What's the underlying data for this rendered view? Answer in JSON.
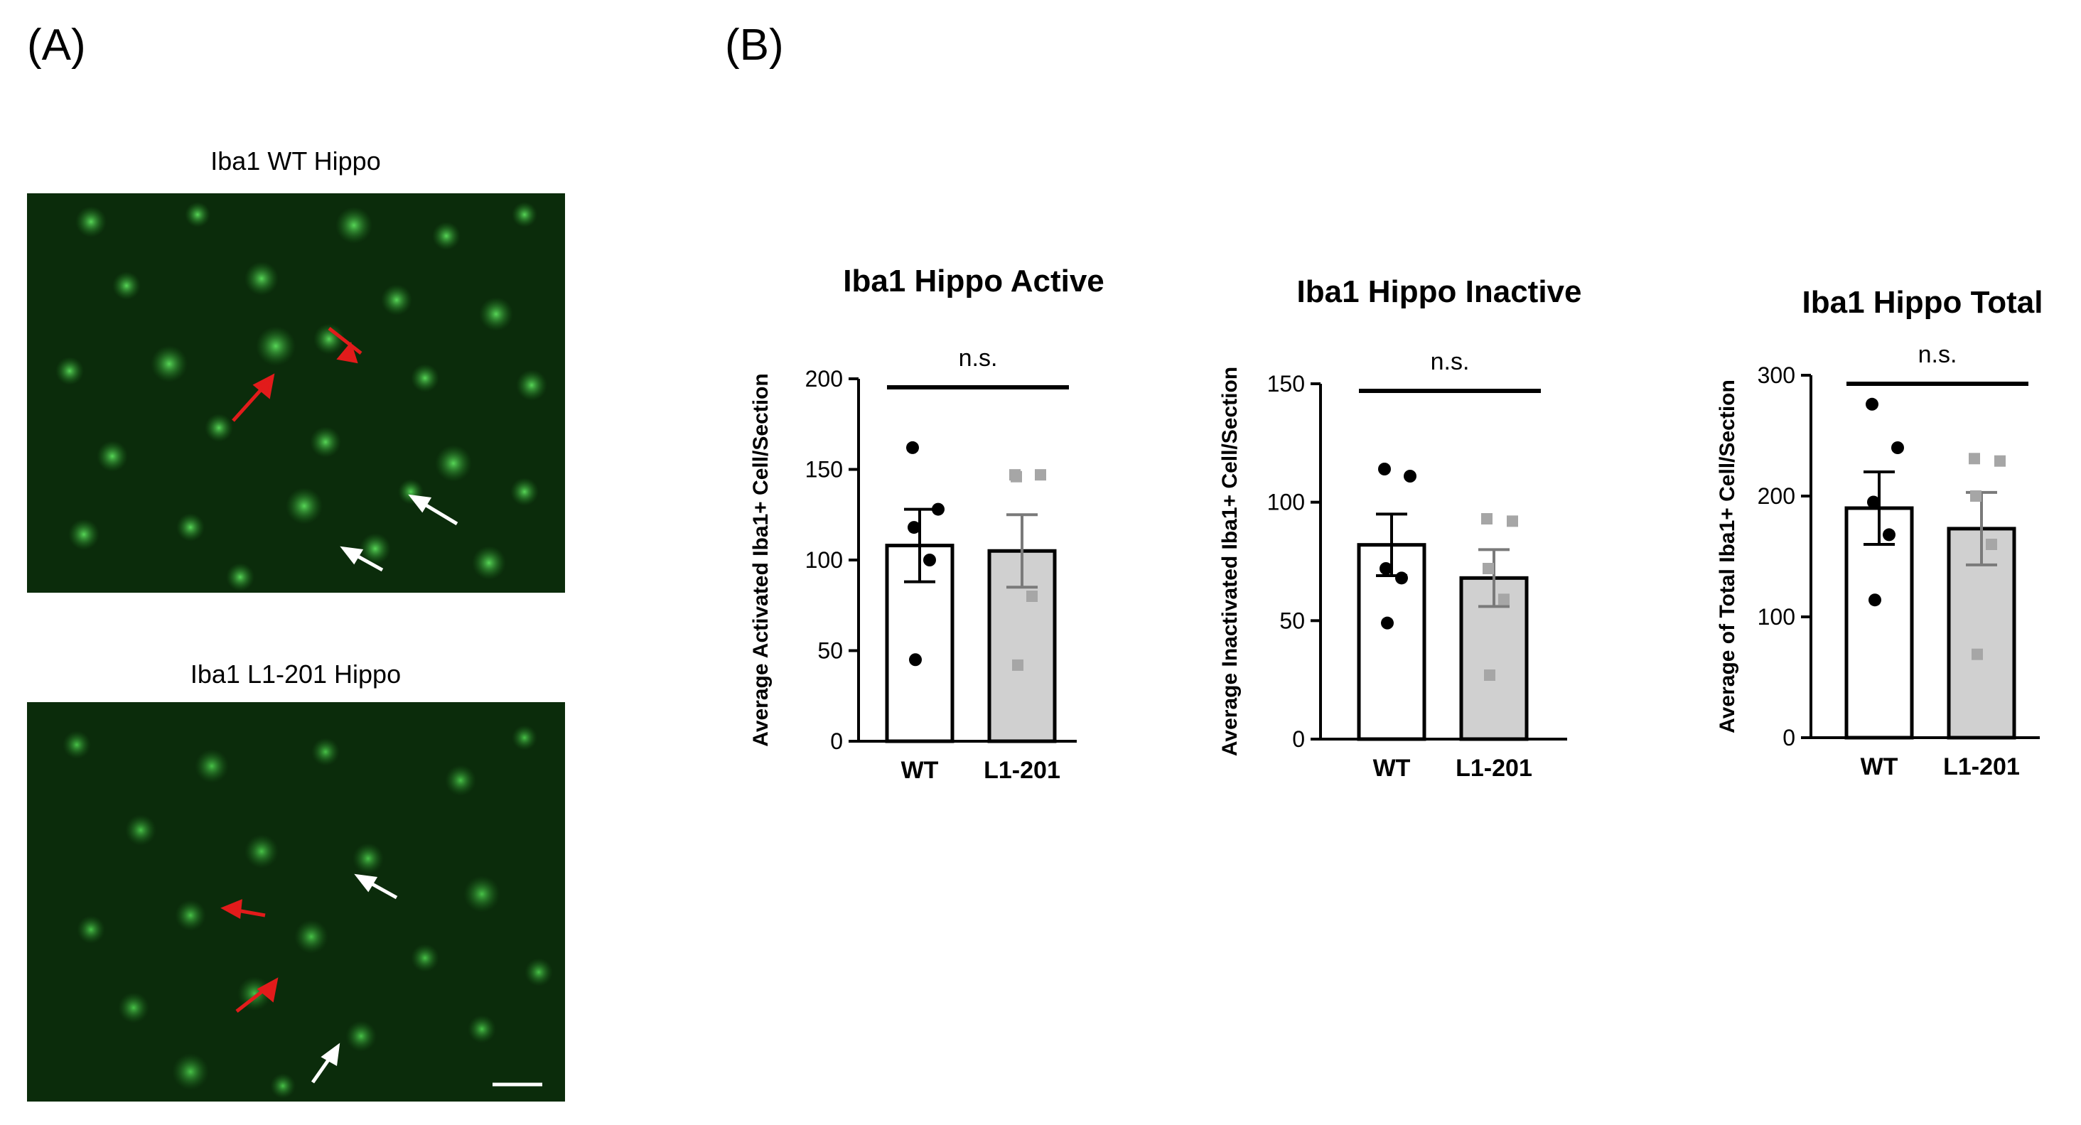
{
  "panel_labels": {
    "a": "(A)",
    "b": "(B)"
  },
  "images": [
    {
      "caption": "Iba1 WT Hippo",
      "icon": "fluorescence-micrograph"
    },
    {
      "caption": "Iba1 L1-201 Hippo",
      "icon": "fluorescence-micrograph"
    }
  ],
  "colors": {
    "wt_bar": "#ffffff",
    "l1_bar": "#d0d0d0",
    "wt_points": "#000000",
    "l1_points": "#a6a6a6",
    "microglia": "#3fd63f",
    "active_arrow": "#e21b1b",
    "inactive_arrow": "#ffffff"
  },
  "chart_data": [
    {
      "type": "bar",
      "title": "Iba1 Hippo Active",
      "ylabel": "Average Activated Iba1+ Cell/Section",
      "categories": [
        "WT",
        "L1-201"
      ],
      "values": [
        108,
        105
      ],
      "sem": [
        20,
        20
      ],
      "points": [
        [
          162,
          128,
          118,
          100,
          45
        ],
        [
          147,
          147,
          146,
          80,
          42
        ]
      ],
      "ylim": [
        0,
        200
      ],
      "yticks": [
        "0",
        "50",
        "100",
        "150",
        "200"
      ],
      "annotation": "n.s."
    },
    {
      "type": "bar",
      "title": "Iba1 Hippo Inactive",
      "ylabel": "Average Inactivated Iba1+ Cell/Section",
      "categories": [
        "WT",
        "L1-201"
      ],
      "values": [
        82,
        68
      ],
      "sem": [
        13,
        12
      ],
      "points": [
        [
          114,
          111,
          72,
          68,
          49
        ],
        [
          93,
          92,
          72,
          59,
          27
        ]
      ],
      "ylim": [
        0,
        150
      ],
      "yticks": [
        "0",
        "50",
        "100",
        "150"
      ],
      "annotation": "n.s."
    },
    {
      "type": "bar",
      "title": "Iba1 Hippo Total",
      "ylabel": "Average of Total Iba1+ Cell/Section",
      "categories": [
        "WT",
        "L1-201"
      ],
      "values": [
        190,
        173
      ],
      "sem": [
        30,
        30
      ],
      "points": [
        [
          276,
          240,
          195,
          168,
          114
        ],
        [
          231,
          229,
          200,
          160,
          69
        ]
      ],
      "ylim": [
        0,
        300
      ],
      "yticks": [
        "0",
        "100",
        "200",
        "300"
      ],
      "annotation": "n.s."
    }
  ]
}
